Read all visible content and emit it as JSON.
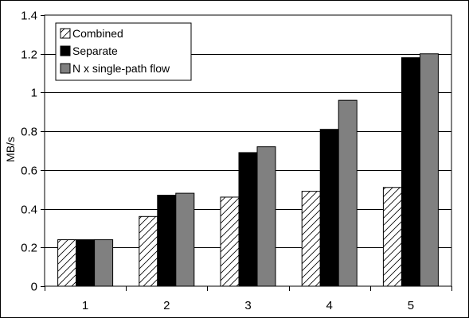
{
  "chart_data": {
    "type": "bar",
    "categories": [
      "1",
      "2",
      "3",
      "4",
      "5"
    ],
    "series": [
      {
        "name": "Combined",
        "values": [
          0.24,
          0.36,
          0.46,
          0.49,
          0.51
        ],
        "pattern": "diagonal-hatch"
      },
      {
        "name": "Separate",
        "values": [
          0.24,
          0.47,
          0.69,
          0.81,
          1.18
        ],
        "color": "#000000"
      },
      {
        "name": "N x single-path flow",
        "values": [
          0.24,
          0.48,
          0.72,
          0.96,
          1.2
        ],
        "color": "#808080"
      }
    ],
    "title": "",
    "xlabel": "",
    "ylabel": "MB/s",
    "ylim": [
      0,
      1.4
    ],
    "yticks": [
      0,
      0.2,
      0.4,
      0.6,
      0.8,
      1,
      1.2,
      1.4
    ],
    "ytick_labels": [
      "0",
      "0.2",
      "0.4",
      "0.6",
      "0.8",
      "1",
      "1.2",
      "1.4"
    ],
    "grid": "horizontal",
    "legend_position": "top-left"
  }
}
